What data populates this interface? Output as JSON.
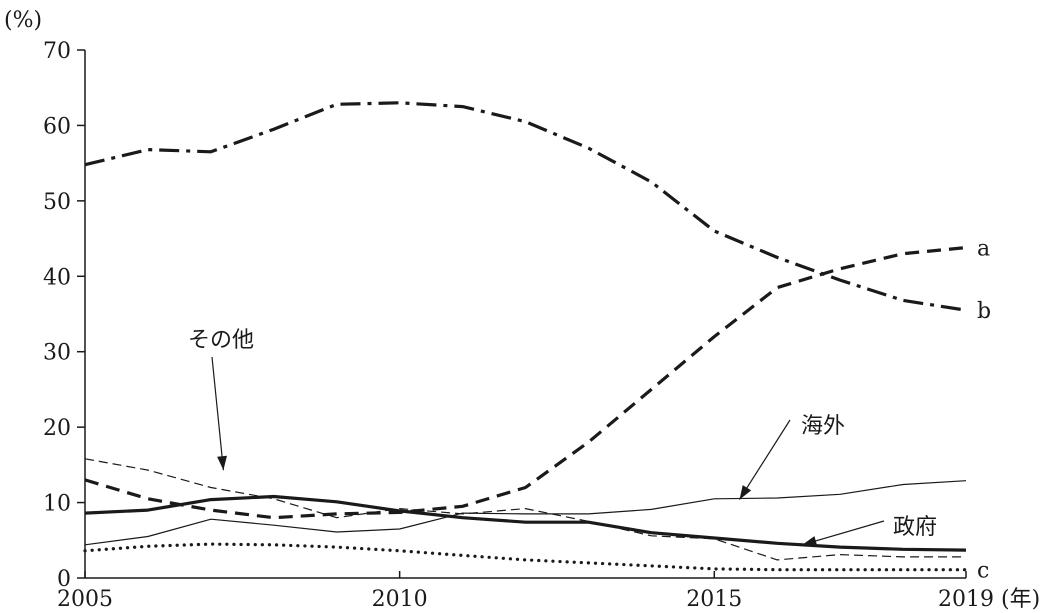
{
  "chart_data": {
    "type": "line",
    "y_unit_label": "(%)",
    "x_unit_label": "(年)",
    "x": [
      2005,
      2006,
      2007,
      2008,
      2009,
      2010,
      2011,
      2012,
      2013,
      2014,
      2015,
      2016,
      2017,
      2018,
      2019
    ],
    "xticks": [
      2005,
      2010,
      2015,
      2019
    ],
    "yticks": [
      0,
      10,
      20,
      30,
      40,
      50,
      60,
      70
    ],
    "xlim": [
      2005,
      2019
    ],
    "ylim": [
      0,
      70
    ],
    "grid": false,
    "series": [
      {
        "name": "a",
        "style": "dashed-thick",
        "values": [
          13.0,
          10.5,
          9.0,
          8.0,
          8.5,
          8.7,
          9.5,
          12.0,
          18.0,
          25.0,
          32.0,
          38.5,
          41.0,
          43.0,
          43.8
        ]
      },
      {
        "name": "b",
        "style": "dashdot-thick",
        "values": [
          54.8,
          56.8,
          56.5,
          59.5,
          62.8,
          63.0,
          62.5,
          60.5,
          57.0,
          52.5,
          46.0,
          42.5,
          39.5,
          36.8,
          35.5
        ]
      },
      {
        "name": "c",
        "style": "dotted-thick",
        "values": [
          3.6,
          4.2,
          4.5,
          4.4,
          4.1,
          3.6,
          3.0,
          2.4,
          2.0,
          1.6,
          1.2,
          1.1,
          1.1,
          1.1,
          1.1
        ]
      },
      {
        "name": "その他",
        "style": "dashed-thin",
        "values": [
          15.8,
          14.3,
          12.0,
          10.5,
          8.0,
          9.2,
          8.5,
          9.2,
          7.5,
          5.6,
          5.2,
          2.4,
          3.1,
          2.8,
          2.8
        ]
      },
      {
        "name": "海外",
        "style": "solid-thin",
        "values": [
          4.4,
          5.5,
          7.8,
          7.0,
          6.1,
          6.5,
          8.6,
          8.5,
          8.5,
          9.1,
          10.5,
          10.6,
          11.1,
          12.4,
          12.9
        ]
      },
      {
        "name": "政府",
        "style": "solid-thick",
        "values": [
          8.6,
          9.0,
          10.4,
          10.8,
          10.1,
          8.9,
          8.0,
          7.4,
          7.4,
          6.0,
          5.3,
          4.6,
          4.1,
          3.8,
          3.7
        ]
      }
    ],
    "annotations": [
      {
        "text": "その他",
        "series": "その他",
        "target": [
          2007.2,
          14.3
        ]
      },
      {
        "text": "海外",
        "series": "海外",
        "target": [
          2015.4,
          10.4
        ]
      },
      {
        "text": "政府",
        "series": "政府",
        "target": [
          2016.4,
          4.4
        ]
      }
    ]
  }
}
